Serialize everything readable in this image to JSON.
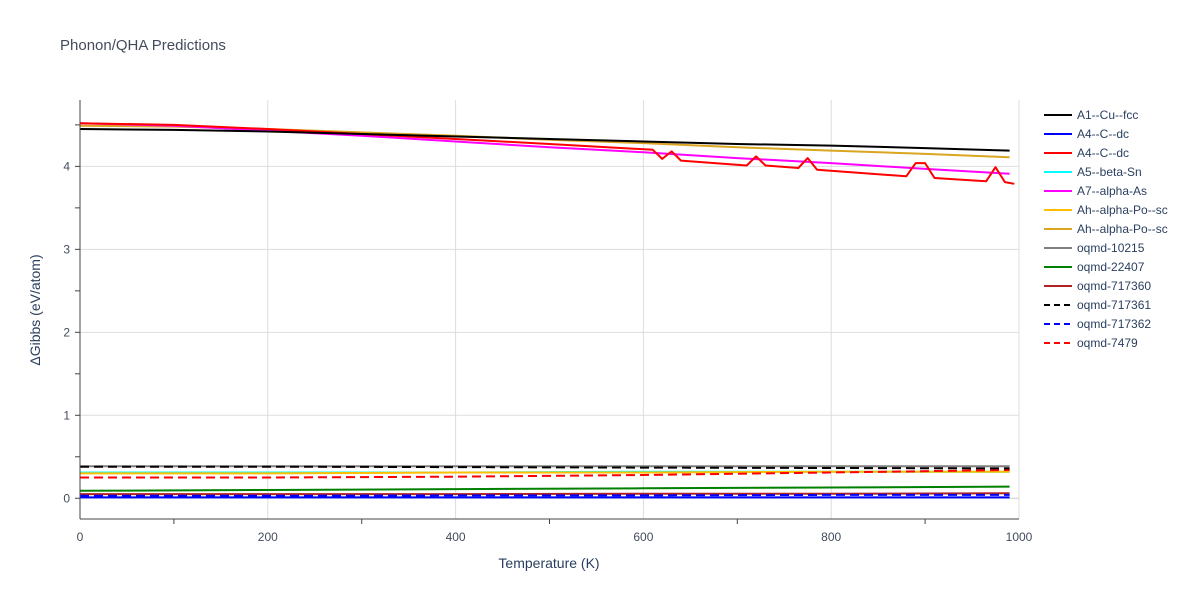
{
  "chart_data": {
    "type": "line",
    "title": "Phonon/QHA Predictions",
    "xlabel": "Temperature (K)",
    "ylabel": "ΔGibbs (eV/atom)",
    "xlim": [
      0,
      1000
    ],
    "ylim": [
      -0.25,
      4.8
    ],
    "xticks": [
      0,
      200,
      400,
      600,
      800,
      1000
    ],
    "yticks": [
      0,
      1,
      2,
      3,
      4
    ],
    "grid": true,
    "legend_position": "right",
    "series": [
      {
        "name": "A1--Cu--fcc",
        "color": "#000000",
        "dash": "solid",
        "x": [
          0,
          100,
          200,
          300,
          400,
          500,
          600,
          700,
          800,
          900,
          990
        ],
        "y": [
          4.45,
          4.44,
          4.42,
          4.39,
          4.36,
          4.33,
          4.3,
          4.27,
          4.25,
          4.22,
          4.19
        ]
      },
      {
        "name": "A4--C--dc",
        "color": "#0000ff",
        "dash": "solid",
        "x": [
          0,
          200,
          400,
          600,
          800,
          990
        ],
        "y": [
          0.01,
          0.01,
          0.01,
          0.01,
          0.01,
          0.01
        ]
      },
      {
        "name": "A4--C--dc",
        "color": "#ff0000",
        "dash": "solid",
        "x": [
          0,
          100,
          200,
          300,
          400,
          500,
          610,
          620,
          630,
          640,
          710,
          720,
          730,
          765,
          775,
          785,
          880,
          890,
          900,
          910,
          965,
          975,
          985,
          995
        ],
        "y": [
          4.52,
          4.5,
          4.45,
          4.39,
          4.33,
          4.27,
          4.2,
          4.09,
          4.18,
          4.07,
          4.01,
          4.12,
          4.01,
          3.98,
          4.1,
          3.96,
          3.88,
          4.04,
          4.04,
          3.86,
          3.82,
          3.99,
          3.81,
          3.79
        ]
      },
      {
        "name": "A5--beta-Sn",
        "color": "#00ffff",
        "dash": "solid",
        "x": [
          0,
          200,
          400,
          600,
          800,
          990
        ],
        "y": [
          0.31,
          0.31,
          0.31,
          0.32,
          0.32,
          0.32
        ]
      },
      {
        "name": "A7--alpha-As",
        "color": "#ff00ff",
        "dash": "solid",
        "x": [
          0,
          100,
          200,
          300,
          400,
          500,
          600,
          700,
          800,
          900,
          990
        ],
        "y": [
          4.52,
          4.49,
          4.43,
          4.37,
          4.3,
          4.23,
          4.17,
          4.1,
          4.04,
          3.97,
          3.91
        ]
      },
      {
        "name": "Ah--alpha-Po--sc",
        "color": "#ffbf00",
        "dash": "solid",
        "x": [
          0,
          200,
          400,
          600,
          800,
          990
        ],
        "y": [
          0.3,
          0.3,
          0.31,
          0.31,
          0.32,
          0.32
        ]
      },
      {
        "name": "Ah--alpha-Po--sc",
        "color": "#daa520",
        "dash": "solid",
        "x": [
          0,
          100,
          200,
          300,
          400,
          500,
          600,
          700,
          800,
          900,
          990
        ],
        "y": [
          4.49,
          4.48,
          4.45,
          4.41,
          4.37,
          4.32,
          4.28,
          4.23,
          4.19,
          4.15,
          4.11
        ]
      },
      {
        "name": "oqmd-10215",
        "color": "#808080",
        "dash": "solid",
        "x": [
          0,
          200,
          400,
          600,
          800,
          990
        ],
        "y": [
          0.385,
          0.385,
          0.385,
          0.385,
          0.385,
          0.385
        ]
      },
      {
        "name": "oqmd-22407",
        "color": "#008000",
        "dash": "solid",
        "x": [
          0,
          200,
          400,
          600,
          800,
          990
        ],
        "y": [
          0.09,
          0.1,
          0.11,
          0.12,
          0.13,
          0.14
        ]
      },
      {
        "name": "oqmd-717360",
        "color": "#b22222",
        "dash": "solid",
        "x": [
          0,
          200,
          400,
          600,
          800,
          990
        ],
        "y": [
          0.05,
          0.05,
          0.05,
          0.055,
          0.055,
          0.06
        ]
      },
      {
        "name": "oqmd-717361",
        "color": "#000000",
        "dash": "dash",
        "x": [
          0,
          200,
          400,
          600,
          800,
          990
        ],
        "y": [
          0.38,
          0.38,
          0.375,
          0.37,
          0.365,
          0.36
        ]
      },
      {
        "name": "oqmd-717362",
        "color": "#0000ff",
        "dash": "dash",
        "x": [
          0,
          200,
          400,
          600,
          800,
          990
        ],
        "y": [
          0.03,
          0.03,
          0.035,
          0.035,
          0.04,
          0.04
        ]
      },
      {
        "name": "oqmd-7479",
        "color": "#ff0000",
        "dash": "dash",
        "x": [
          0,
          200,
          400,
          600,
          800,
          990
        ],
        "y": [
          0.25,
          0.25,
          0.26,
          0.28,
          0.31,
          0.34
        ]
      }
    ]
  }
}
